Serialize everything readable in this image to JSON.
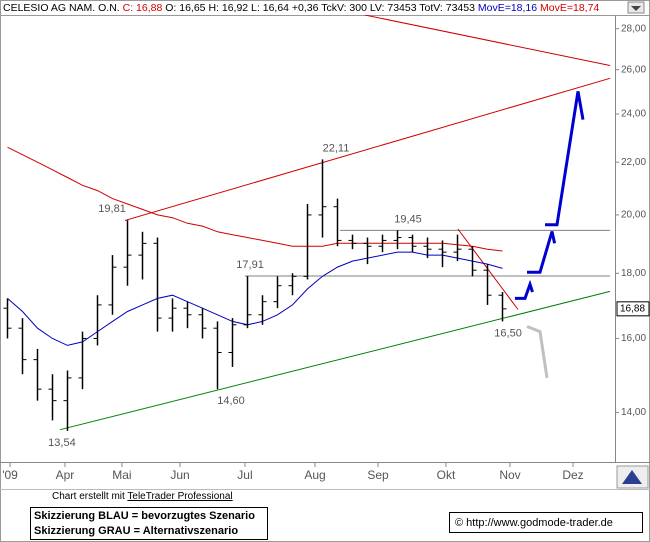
{
  "chart_data": {
    "type": "ohlc",
    "header": [
      {
        "text": "CELESIO AG NAM. O.N. ",
        "color": "#000000"
      },
      {
        "text": "C: 16,88",
        "color": "#d00000"
      },
      {
        "text": " O: 16,65 H: 16,92 L: 16,64 +0,36 TckV: 300 LV: 73453 TotV: 73453 ",
        "color": "#000000"
      },
      {
        "text": "MovE=18,16",
        "color": "#0000c0"
      },
      {
        "text": " ",
        "color": "#000000"
      },
      {
        "text": "MovE=18,74",
        "color": "#d00000"
      }
    ],
    "log_scale": true,
    "bar_color": "#000000",
    "x": [
      0,
      1,
      2,
      3,
      4,
      5,
      6,
      7,
      8,
      9,
      10,
      11,
      12,
      13,
      14,
      15,
      16,
      17,
      18,
      19,
      20,
      21,
      22,
      23,
      24,
      25,
      26,
      27,
      28,
      29,
      30,
      31,
      32,
      33
    ],
    "open": [
      16.9,
      16.3,
      15.4,
      14.6,
      14.3,
      14.9,
      16.0,
      17.0,
      18.2,
      18.6,
      19.0,
      16.6,
      16.9,
      16.7,
      16.3,
      15.6,
      16.4,
      16.7,
      17.1,
      17.6,
      17.9,
      20.0,
      20.3,
      19.1,
      19.0,
      18.9,
      19.1,
      19.2,
      18.9,
      18.8,
      18.7,
      18.8,
      18.1,
      17.3
    ],
    "high": [
      17.2,
      16.6,
      15.7,
      15.0,
      15.1,
      16.2,
      17.3,
      18.6,
      19.81,
      19.4,
      19.2,
      17.2,
      17.1,
      16.9,
      16.5,
      16.6,
      17.91,
      17.3,
      17.9,
      18.0,
      20.4,
      22.11,
      20.6,
      19.3,
      19.2,
      19.3,
      19.45,
      19.3,
      19.2,
      19.1,
      19.3,
      18.9,
      18.3,
      17.4
    ],
    "low": [
      16.0,
      15.0,
      14.3,
      13.8,
      13.54,
      14.6,
      15.8,
      16.7,
      17.6,
      17.8,
      16.2,
      16.2,
      16.3,
      16.0,
      14.6,
      15.2,
      16.3,
      16.4,
      16.9,
      17.3,
      17.8,
      19.2,
      18.9,
      18.8,
      18.3,
      18.7,
      18.8,
      18.7,
      18.5,
      18.2,
      18.4,
      17.9,
      17.0,
      16.5
    ],
    "close": [
      16.3,
      15.4,
      14.6,
      14.3,
      14.9,
      16.0,
      17.0,
      18.2,
      18.6,
      19.0,
      16.6,
      16.9,
      16.7,
      16.3,
      15.6,
      16.4,
      16.7,
      17.1,
      17.6,
      17.9,
      20.0,
      20.3,
      19.1,
      19.0,
      18.9,
      19.1,
      19.2,
      18.9,
      18.8,
      18.7,
      18.8,
      18.1,
      17.3,
      16.88
    ],
    "moving_averages": [
      {
        "color": "#0000c0",
        "values": [
          17.2,
          16.8,
          16.3,
          16.0,
          15.8,
          15.9,
          16.2,
          16.5,
          16.8,
          17.0,
          17.2,
          17.3,
          17.1,
          16.9,
          16.7,
          16.5,
          16.4,
          16.5,
          16.7,
          17.0,
          17.5,
          17.9,
          18.2,
          18.4,
          18.5,
          18.6,
          18.7,
          18.7,
          18.6,
          18.6,
          18.5,
          18.4,
          18.3,
          18.16
        ]
      },
      {
        "color": "#d00000",
        "values": [
          22.6,
          22.3,
          22.0,
          21.7,
          21.4,
          21.1,
          20.9,
          20.6,
          20.4,
          20.2,
          20.0,
          19.9,
          19.7,
          19.6,
          19.4,
          19.3,
          19.2,
          19.1,
          19.0,
          18.9,
          18.9,
          18.9,
          19.0,
          19.0,
          19.0,
          19.0,
          19.0,
          19.0,
          19.0,
          19.0,
          18.95,
          18.9,
          18.8,
          18.74
        ]
      }
    ],
    "lines": [
      {
        "color": "#008000",
        "x": [
          3.5,
          40.17
        ],
        "y": [
          13.57,
          17.42
        ]
      },
      {
        "color": "#d00000",
        "x": [
          7.83,
          40.17
        ],
        "y": [
          19.8,
          25.6
        ]
      },
      {
        "color": "#d00000",
        "x": [
          23.83,
          40.17
        ],
        "y": [
          28.7,
          26.2
        ]
      },
      {
        "color": "#808080",
        "x": [
          22.17,
          40.17
        ],
        "y": [
          19.45,
          19.45
        ]
      },
      {
        "color": "#808080",
        "x": [
          15.83,
          40.17
        ],
        "y": [
          17.91,
          17.91
        ]
      },
      {
        "color": "#d00000",
        "x": [
          30.03,
          34.03
        ],
        "y": [
          19.5,
          16.86
        ]
      }
    ],
    "scenarios": [
      {
        "color": "#0000d0",
        "x": [
          33.83,
          34.5,
          34.83,
          35.0
        ],
        "y": [
          17.2,
          17.2,
          17.64,
          17.4
        ]
      },
      {
        "color": "#0000d0",
        "x": [
          34.63,
          35.5,
          36.3,
          36.47
        ],
        "y": [
          18.03,
          18.03,
          19.41,
          19.0
        ]
      },
      {
        "color": "#0000d0",
        "x": [
          35.83,
          36.63,
          38.03,
          38.37
        ],
        "y": [
          19.65,
          19.65,
          25.0,
          23.76
        ]
      },
      {
        "color": "#c0c0c0",
        "x": [
          34.63,
          35.5,
          35.97
        ],
        "y": [
          16.35,
          16.2,
          14.9
        ]
      }
    ],
    "annotations": [
      {
        "text": "22,11",
        "value": 22.11,
        "x": 21.9,
        "position": "above"
      },
      {
        "text": "19,81",
        "value": 19.81,
        "x": 6.97,
        "position": "above"
      },
      {
        "text": "19,45",
        "value": 19.45,
        "x": 26.7,
        "position": "above"
      },
      {
        "text": "17,91",
        "value": 17.91,
        "x": 16.17,
        "position": "above"
      },
      {
        "text": "14,60",
        "value": 14.6,
        "x": 14.9,
        "position": "below"
      },
      {
        "text": "13,54",
        "value": 13.54,
        "x": 3.63,
        "position": "below"
      },
      {
        "text": "16,50",
        "value": 16.5,
        "x": 33.37,
        "position": "below"
      }
    ],
    "last_price": {
      "value": 16.88,
      "label": "16,88"
    },
    "xlim": [
      -0.5,
      40.5
    ],
    "xticks": [
      {
        "value": 0.17,
        "label": "'09"
      },
      {
        "value": 3.83,
        "label": "Apr"
      },
      {
        "value": 7.63,
        "label": "Mai"
      },
      {
        "value": 11.5,
        "label": "Jun"
      },
      {
        "value": 15.83,
        "label": "Jul"
      },
      {
        "value": 20.5,
        "label": "Aug"
      },
      {
        "value": 24.7,
        "label": "Sep"
      },
      {
        "value": 29.23,
        "label": "Okt"
      },
      {
        "value": 33.5,
        "label": "Nov"
      },
      {
        "value": 37.7,
        "label": "Dez"
      }
    ],
    "ylim": [
      12.8,
      28.7
    ],
    "yticks": [
      {
        "value": 14,
        "label": "14,00"
      },
      {
        "value": 16,
        "label": "16,00"
      },
      {
        "value": 18,
        "label": "18,00"
      },
      {
        "value": 20,
        "label": "20,00"
      },
      {
        "value": 22,
        "label": "22,00"
      },
      {
        "value": 24,
        "label": "24,00"
      },
      {
        "value": 26,
        "label": "26,00"
      },
      {
        "value": 28,
        "label": "28,00"
      }
    ]
  },
  "footer": {
    "credit_prefix": "Chart erstellt mit ",
    "credit_link": "TeleTrader Professional",
    "legend": [
      "Skizzierung BLAU = bevorzugtes Szenario",
      "Skizzierung GRAU = Alternativszenario"
    ],
    "copyright": "© http://www.godmode-trader.de"
  }
}
